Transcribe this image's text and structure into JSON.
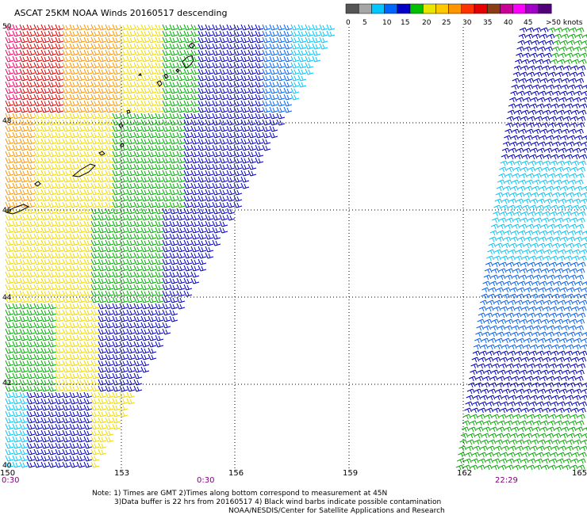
{
  "title": "ASCAT 25KM NOAA Winds 20160517 descending",
  "legend": {
    "colors": [
      "#555555",
      "#a6a6a6",
      "#00c8ff",
      "#0064ff",
      "#0000c8",
      "#00c000",
      "#e6e600",
      "#ffc800",
      "#ff9600",
      "#ff3200",
      "#e60000",
      "#8c3c14",
      "#c80096",
      "#ff00ff",
      "#a000c8",
      "#500078"
    ],
    "labels": [
      "0",
      "5",
      "10",
      "15",
      "20",
      "25",
      "30",
      "35",
      "40",
      "45",
      ">50 knots"
    ]
  },
  "lat_labels": [
    "50",
    "48",
    "46",
    "44",
    "42",
    "40"
  ],
  "lon_labels": [
    "150",
    "153",
    "156",
    "159",
    "162",
    "165"
  ],
  "time_labels": [
    "0:30",
    "0:30",
    "22:29"
  ],
  "notes": [
    "Note: 1) Times are GMT 2)Times along bottom correspond to measurement at 45N",
    "3)Data buffer is 22 hrs from 20160517 4) Black wind barbs indicate possible contamination",
    "NOAA/NESDIS/Center for Satellite Applications and Research"
  ]
}
